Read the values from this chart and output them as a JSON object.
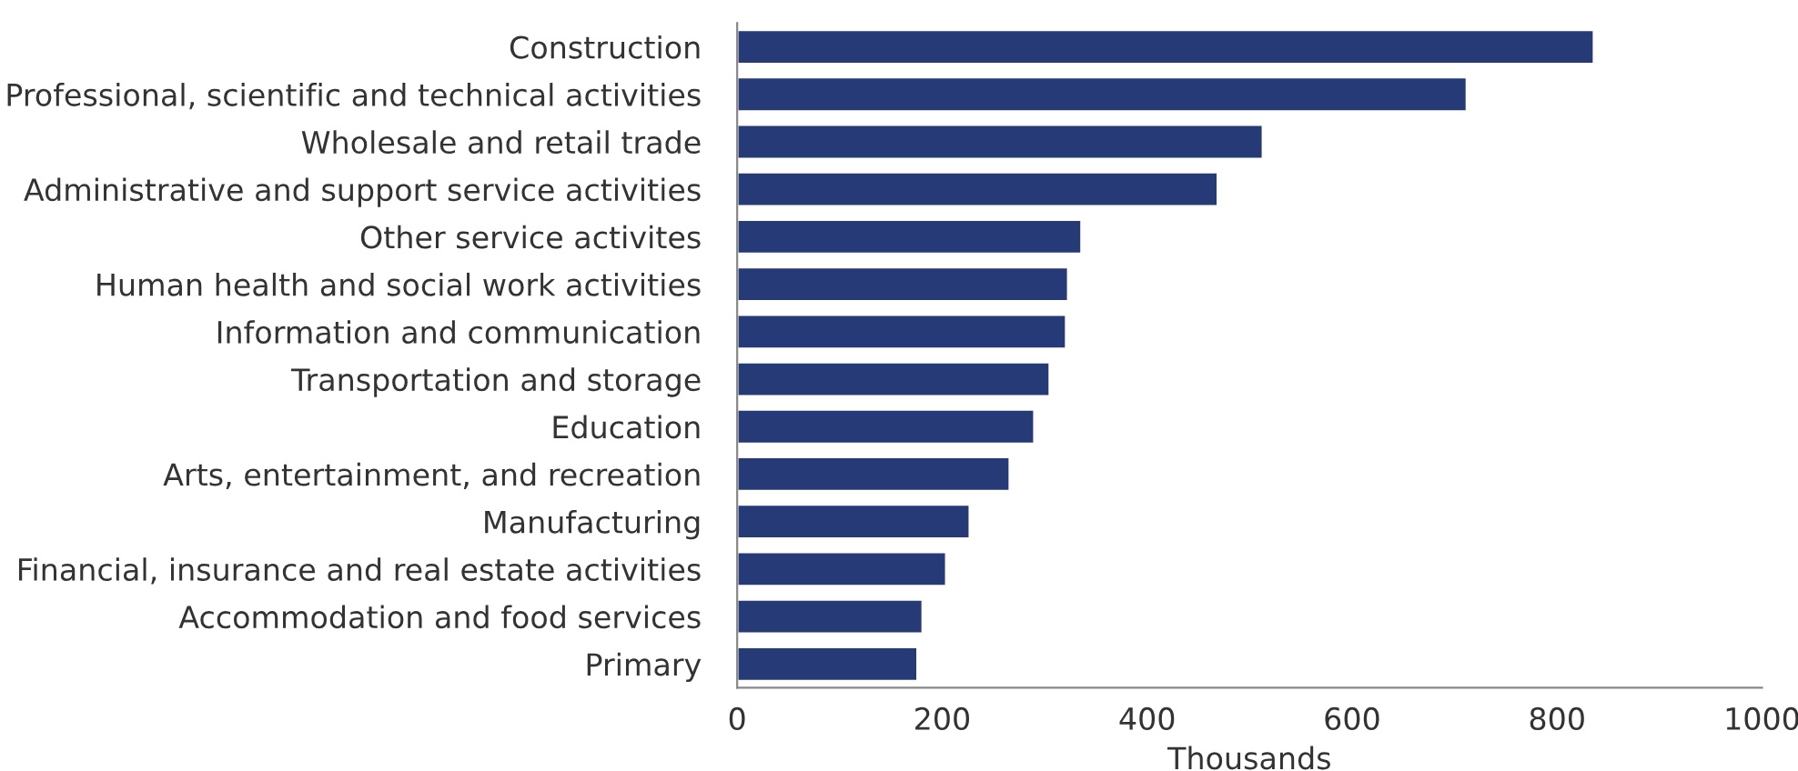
{
  "chart_data": {
    "type": "bar",
    "orientation": "horizontal",
    "xlabel": "Thousands",
    "categories": [
      "Construction",
      "Professional, scientific and technical activities",
      "Wholesale and retail trade",
      "Administrative and support service activities",
      "Other service activites",
      "Human health and social work activities",
      "Information and communication",
      "Transportation and storage",
      "Education",
      "Arts, entertainment, and recreation",
      "Manufacturing",
      "Financial, insurance and real estate activities",
      "Accommodation and food services",
      "Primary"
    ],
    "values": [
      836,
      712,
      513,
      469,
      336,
      323,
      321,
      305,
      290,
      266,
      227,
      204,
      181,
      176
    ],
    "color": "#263a78",
    "xlim": [
      0,
      1000
    ],
    "xticks": [
      0,
      200,
      400,
      600,
      800,
      1000
    ],
    "grid": false
  }
}
